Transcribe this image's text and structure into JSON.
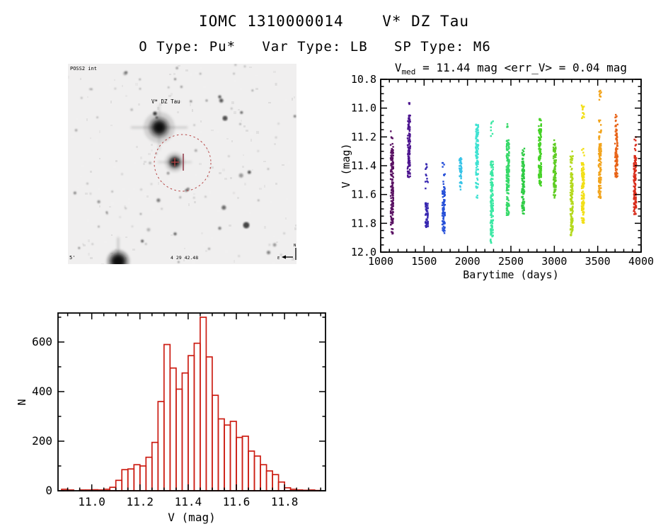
{
  "header": {
    "title": "IOMC 1310000014    V* DZ Tau",
    "subtitle": "O Type: Pu*   Var Type: LB   SP Type: M6"
  },
  "finder_chart": {
    "survey_label": "POSS2 int",
    "target_label": "V* DZ Tau",
    "coord_label": "4 29 42.48",
    "scale_label": "5'",
    "compass_north": "N",
    "compass_east": "E",
    "marker_color": "#b64545"
  },
  "chart_data": [
    {
      "type": "scatter",
      "title_v": "V",
      "title_sub": "med",
      "title_rest": " = 11.44 mag <err_V> = 0.04 mag",
      "xlabel": "Barytime (days)",
      "ylabel": "V (mag)",
      "xlim": [
        1000,
        4000
      ],
      "ylim": [
        12.0,
        10.8
      ],
      "xticks": [
        1000,
        1500,
        2000,
        2500,
        3000,
        3500,
        4000
      ],
      "yticks": [
        10.8,
        11.0,
        11.2,
        11.4,
        11.6,
        11.8,
        12.0
      ],
      "x_minor_step": 100,
      "y_minor_step": 0.05,
      "grid": false,
      "legend": "none",
      "clusters": [
        {
          "t": 1130,
          "color": "#5a1263",
          "segments": [
            [
              11.16,
              11.25,
              "sparse"
            ],
            [
              11.25,
              11.82,
              "dense"
            ],
            [
              11.82,
              11.88,
              "medium"
            ]
          ]
        },
        {
          "t": 1325,
          "color": "#4c148f",
          "segments": [
            [
              10.96,
              10.98,
              "dot"
            ],
            [
              11.05,
              11.48,
              "dense"
            ]
          ]
        },
        {
          "t": 1530,
          "color": "#3626b0",
          "segments": [
            [
              11.37,
              11.58,
              "sparse"
            ],
            [
              11.65,
              11.83,
              "dense"
            ]
          ]
        },
        {
          "t": 1725,
          "color": "#2750d8",
          "segments": [
            [
              11.38,
              11.55,
              "sparse"
            ],
            [
              11.55,
              11.87,
              "dense"
            ]
          ]
        },
        {
          "t": 1920,
          "color": "#38c4e8",
          "segments": [
            [
              11.34,
              11.45,
              "dense"
            ],
            [
              11.45,
              11.57,
              "medium"
            ]
          ]
        },
        {
          "t": 2110,
          "color": "#3fe2d2",
          "segments": [
            [
              11.11,
              11.47,
              "dense"
            ],
            [
              11.47,
              11.58,
              "medium"
            ],
            [
              11.58,
              11.64,
              "sparse"
            ]
          ]
        },
        {
          "t": 2280,
          "color": "#3be8a4",
          "segments": [
            [
              11.09,
              11.21,
              "sparse"
            ],
            [
              11.37,
              11.94,
              "dense"
            ]
          ]
        },
        {
          "t": 2465,
          "color": "#35d968",
          "segments": [
            [
              11.1,
              11.14,
              "dot"
            ],
            [
              11.22,
              11.75,
              "dense"
            ]
          ]
        },
        {
          "t": 2640,
          "color": "#2fcc45",
          "segments": [
            [
              11.28,
              11.35,
              "medium"
            ],
            [
              11.35,
              11.74,
              "dense"
            ]
          ]
        },
        {
          "t": 2835,
          "color": "#45d226",
          "segments": [
            [
              11.07,
              11.12,
              "medium"
            ],
            [
              11.12,
              11.54,
              "dense"
            ]
          ]
        },
        {
          "t": 3005,
          "color": "#5ecc22",
          "segments": [
            [
              11.22,
              11.27,
              "medium"
            ],
            [
              11.27,
              11.63,
              "dense"
            ]
          ]
        },
        {
          "t": 3200,
          "color": "#b4d91d",
          "segments": [
            [
              11.3,
              11.45,
              "medium"
            ],
            [
              11.45,
              11.89,
              "dense"
            ]
          ]
        },
        {
          "t": 3330,
          "color": "#f2df17",
          "segments": [
            [
              10.95,
              11.08,
              "medium"
            ],
            [
              11.28,
              11.33,
              "dot"
            ],
            [
              11.38,
              11.8,
              "dense"
            ]
          ]
        },
        {
          "t": 3525,
          "color": "#f2a41c",
          "segments": [
            [
              10.87,
              10.96,
              "medium"
            ],
            [
              11.08,
              11.12,
              "dot"
            ],
            [
              11.15,
              11.25,
              "medium"
            ],
            [
              11.25,
              11.63,
              "dense"
            ]
          ]
        },
        {
          "t": 3715,
          "color": "#e86418",
          "segments": [
            [
              11.04,
              11.15,
              "medium"
            ],
            [
              11.15,
              11.48,
              "dense"
            ]
          ]
        },
        {
          "t": 3930,
          "color": "#d92c1b",
          "segments": [
            [
              11.2,
              11.33,
              "sparse"
            ],
            [
              11.33,
              11.7,
              "dense"
            ],
            [
              11.7,
              11.76,
              "medium"
            ]
          ]
        }
      ]
    },
    {
      "type": "bar",
      "title": "",
      "xlabel": "V (mag)",
      "ylabel": "N",
      "xlim": [
        10.86,
        11.97
      ],
      "ylim": [
        0,
        717
      ],
      "xticks": [
        11.0,
        11.2,
        11.4,
        11.6,
        11.8
      ],
      "yticks": [
        0,
        200,
        400,
        600
      ],
      "x_minor_step": 0.05,
      "y_minor_step": 100,
      "grid": false,
      "legend": "none",
      "bar_color": "#cc1d13",
      "bins_start": 10.875,
      "bin_width": 0.025,
      "counts": [
        6,
        3,
        0,
        3,
        3,
        4,
        3,
        6,
        14,
        42,
        85,
        88,
        105,
        100,
        135,
        195,
        360,
        590,
        495,
        410,
        475,
        545,
        595,
        700,
        540,
        385,
        290,
        265,
        280,
        215,
        220,
        160,
        140,
        105,
        80,
        65,
        35,
        12,
        6,
        3,
        2,
        3,
        1
      ]
    }
  ]
}
